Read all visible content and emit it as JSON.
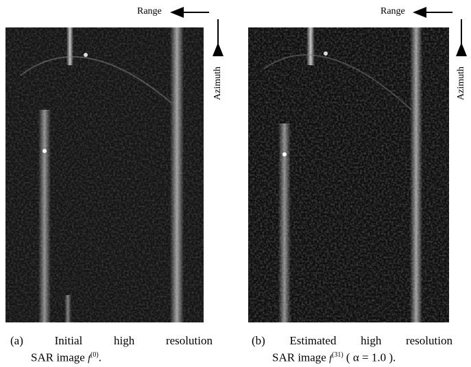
{
  "panels": [
    {
      "range_label": "Range",
      "azimuth_label": "Azimuth",
      "tag": "(a)",
      "caption_words": [
        "Initial",
        "high",
        "resolution"
      ],
      "caption_line2": "SAR image",
      "symbol": "f",
      "superscript": "(0)",
      "suffix": "."
    },
    {
      "range_label": "Range",
      "azimuth_label": "Azimuth",
      "tag": "(b)",
      "caption_words": [
        "Estimated",
        "high",
        "resolution"
      ],
      "caption_line2": "SAR image",
      "symbol": "f",
      "superscript": "(31)",
      "suffix": "( α = 1.0 )."
    }
  ]
}
